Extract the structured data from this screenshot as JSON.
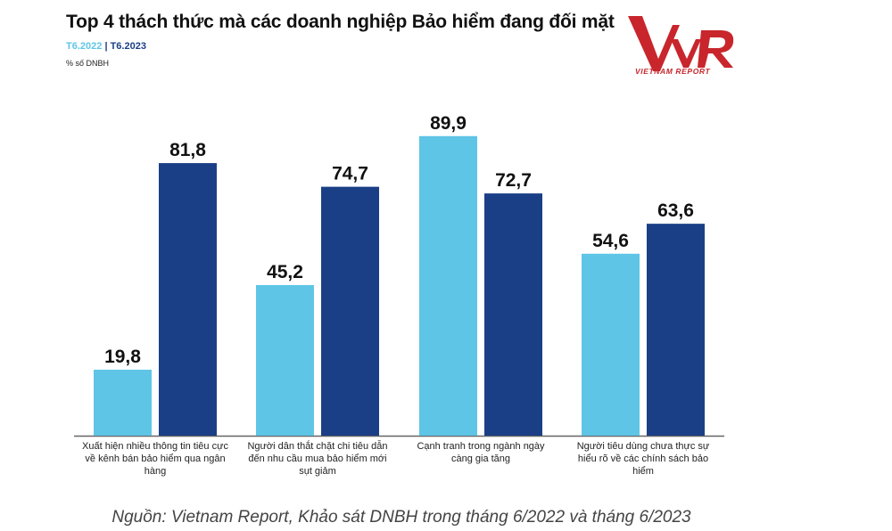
{
  "title": "Top 4 thách thức mà các doanh nghiệp Bảo hiểm đang đối mặt",
  "logo": {
    "mark": "VNR",
    "text": "VIETNAM REPORT"
  },
  "source": "Nguồn: Vietnam Report, Khảo sát DNBH trong tháng 6/2022 và tháng 6/2023",
  "chart_data": {
    "type": "bar",
    "title": "Top 4 thách thức mà các doanh nghiệp Bảo hiểm đang đối mặt",
    "ylabel": "% số DNBH",
    "xlabel": "",
    "ylim": [
      0,
      100
    ],
    "grid": false,
    "legend_placement": "top-left",
    "legend_separator": "|",
    "categories": [
      "Xuất hiện nhiều thông tin tiêu cực về kênh bán bảo hiểm qua ngân hàng",
      "Người dân thắt chặt chi tiêu dẫn đến nhu cầu mua bảo hiểm mới sụt giảm",
      "Cạnh tranh trong ngành ngày càng gia tăng",
      "Người tiêu dùng chưa thực sự hiểu rõ về các chính sách bảo hiểm"
    ],
    "series": [
      {
        "name": "T6.2022",
        "color": "#5ec5e6",
        "values": [
          19.8,
          45.2,
          89.9,
          54.6
        ],
        "labels": [
          "19,8",
          "45,2",
          "89,9",
          "54,6"
        ]
      },
      {
        "name": "T6.2023",
        "color": "#1b3f86",
        "values": [
          81.8,
          74.7,
          72.7,
          63.6
        ],
        "labels": [
          "81,8",
          "74,7",
          "72,7",
          "63,6"
        ]
      }
    ]
  }
}
